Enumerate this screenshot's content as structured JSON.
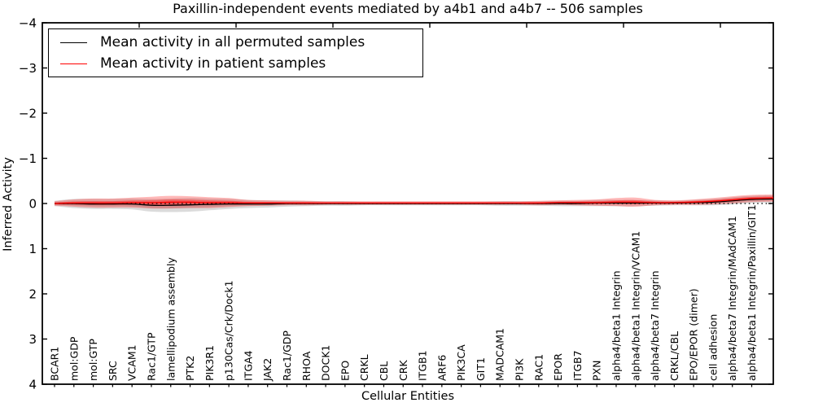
{
  "title": "Paxillin-independent events mediated by a4b1 and a4b7 -- 506 samples",
  "axes": {
    "ylabel": "Inferred Activity",
    "xlabel": "Cellular Entities",
    "ytick_labels": [
      "4",
      "3",
      "2",
      "1",
      "0",
      "−1",
      "−2",
      "−3",
      "−4"
    ],
    "ylim": [
      -4,
      4
    ]
  },
  "legend": {
    "items": [
      {
        "label": "Mean activity in all permuted samples",
        "color": "#000000"
      },
      {
        "label": "Mean activity in patient samples",
        "color": "#ff0000"
      }
    ]
  },
  "chart_data": {
    "type": "line",
    "title": "Paxillin-independent events mediated by a4b1 and a4b7 -- 506 samples",
    "xlabel": "Cellular Entities",
    "ylabel": "Inferred Activity",
    "ylim": [
      -4,
      4
    ],
    "yticks": [
      -4,
      -3,
      -2,
      -1,
      0,
      1,
      2,
      3,
      4
    ],
    "grid": false,
    "legend_position": "upper left",
    "zero_line_y": 0,
    "categories": [
      "BCAR1",
      "mol:GDP",
      "mol:GTP",
      "SRC",
      "VCAM1",
      "Rac1/GTP",
      "lamellipodium assembly",
      "PTK2",
      "PIK3R1",
      "p130Cas/Crk/Dock1",
      "ITGA4",
      "JAK2",
      "Rac1/GDP",
      "RHOA",
      "DOCK1",
      "EPO",
      "CRKL",
      "CBL",
      "CRK",
      "ITGB1",
      "ARF6",
      "PIK3CA",
      "GIT1",
      "MADCAM1",
      "PI3K",
      "RAC1",
      "EPOR",
      "ITGB7",
      "PXN",
      "alpha4/beta1 Integrin",
      "alpha4/beta1 Integrin/VCAM1",
      "alpha4/beta7 Integrin",
      "CRKL/CBL",
      "EPO/EPOR (dimer)",
      "cell adhesion",
      "alpha4/beta7 Integrin/MAdCAM1",
      "alpha4/beta1 Integrin/Paxillin/GIT1"
    ],
    "series": [
      {
        "name": "Mean activity in all permuted samples",
        "color": "#000000",
        "band_color": "#000000",
        "values": [
          0.0,
          0.0,
          -0.01,
          -0.01,
          -0.01,
          -0.04,
          -0.04,
          -0.03,
          -0.02,
          -0.01,
          -0.01,
          -0.01,
          0.0,
          0.0,
          0.0,
          0.0,
          0.0,
          0.0,
          0.0,
          0.0,
          0.0,
          0.0,
          0.0,
          0.0,
          0.0,
          0.0,
          0.0,
          0.0,
          0.01,
          0.01,
          0.01,
          0.01,
          0.01,
          0.02,
          0.03,
          0.06,
          0.09
        ],
        "band": [
          0.06,
          0.1,
          0.11,
          0.11,
          0.12,
          0.14,
          0.15,
          0.15,
          0.13,
          0.11,
          0.09,
          0.08,
          0.07,
          0.06,
          0.05,
          0.05,
          0.04,
          0.04,
          0.04,
          0.04,
          0.04,
          0.04,
          0.04,
          0.05,
          0.05,
          0.05,
          0.06,
          0.06,
          0.07,
          0.07,
          0.07,
          0.06,
          0.05,
          0.06,
          0.07,
          0.08,
          0.08
        ]
      },
      {
        "name": "Mean activity in patient samples",
        "color": "#ff0000",
        "band_color": "#ff0000",
        "values": [
          0.0,
          0.01,
          0.01,
          0.01,
          0.02,
          0.02,
          0.03,
          0.03,
          0.02,
          0.02,
          0.01,
          0.01,
          0.01,
          0.01,
          0.01,
          0.01,
          0.01,
          0.01,
          0.01,
          0.01,
          0.01,
          0.01,
          0.01,
          0.01,
          0.01,
          0.01,
          0.02,
          0.02,
          0.02,
          0.03,
          0.03,
          0.02,
          0.02,
          0.03,
          0.05,
          0.08,
          0.11
        ],
        "band": [
          0.05,
          0.08,
          0.1,
          0.1,
          0.11,
          0.13,
          0.14,
          0.13,
          0.12,
          0.1,
          0.07,
          0.06,
          0.05,
          0.05,
          0.04,
          0.04,
          0.04,
          0.04,
          0.04,
          0.04,
          0.04,
          0.04,
          0.04,
          0.04,
          0.04,
          0.05,
          0.05,
          0.06,
          0.07,
          0.09,
          0.1,
          0.06,
          0.05,
          0.06,
          0.07,
          0.08,
          0.08
        ]
      }
    ]
  }
}
